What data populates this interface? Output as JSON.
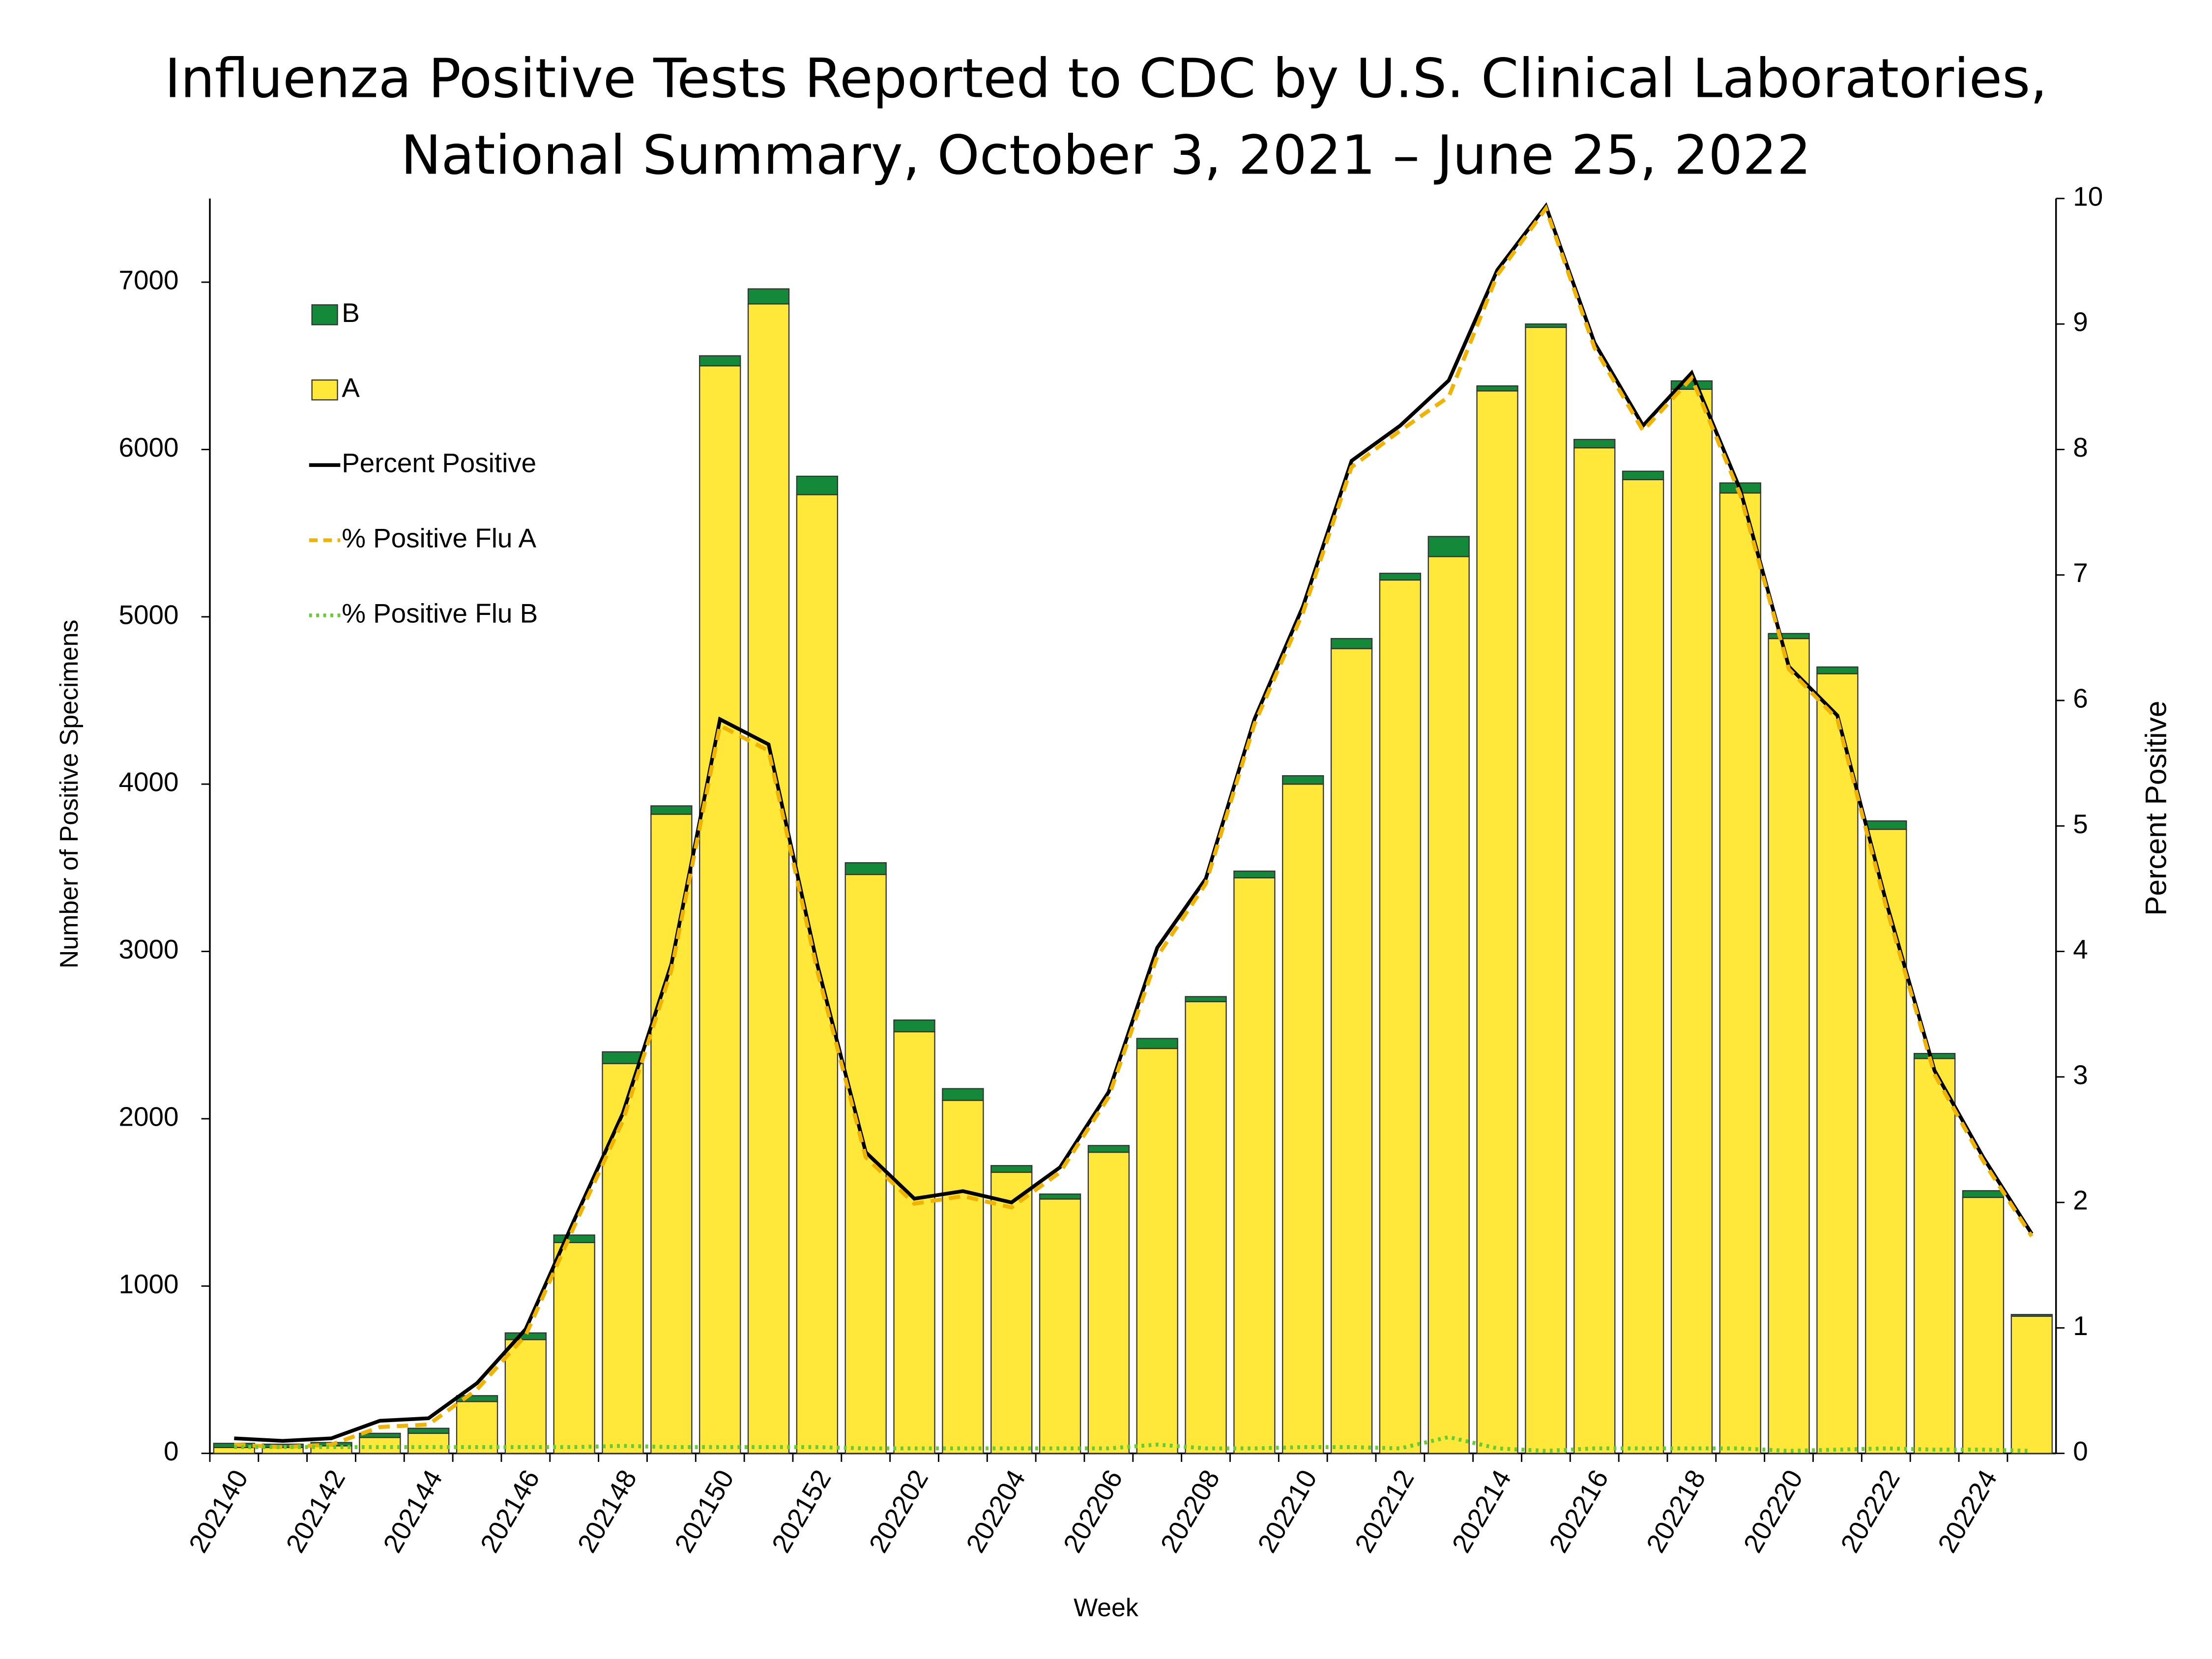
{
  "chart_data": {
    "type": "bar-line",
    "title": [
      "Influenza Positive Tests Reported to CDC by U.S. Clinical Laboratories,",
      "National Summary, October 3, 2021 – June 25, 2022"
    ],
    "x_label": "Week",
    "y_label": "Number of Positive Specimens",
    "y2_label": "Percent Positive",
    "categories": [
      "202140",
      null,
      "202142",
      null,
      "202144",
      null,
      "202146",
      null,
      "202148",
      null,
      "202150",
      null,
      "202152",
      null,
      "202202",
      null,
      "202204",
      null,
      "202206",
      null,
      "202208",
      null,
      "202210",
      null,
      "202212",
      null,
      "202214",
      null,
      "202216",
      null,
      "202218",
      null,
      "202220",
      null,
      "202222",
      null,
      "202224",
      null
    ],
    "ylim": [
      0,
      7500
    ],
    "yticks": [
      0,
      1000,
      2000,
      3000,
      4000,
      5000,
      6000,
      7000
    ],
    "y2lim": [
      0,
      10
    ],
    "y2ticks": [
      0,
      1,
      2,
      3,
      4,
      5,
      6,
      7,
      8,
      9,
      10
    ],
    "legend": "upper left",
    "series": [
      {
        "name": "B",
        "kind": "bar",
        "color": "#15893a",
        "values": [
          25,
          20,
          20,
          25,
          30,
          35,
          40,
          45,
          70,
          50,
          60,
          90,
          110,
          70,
          70,
          70,
          40,
          30,
          40,
          60,
          30,
          40,
          50,
          60,
          40,
          120,
          30,
          20,
          50,
          50,
          50,
          60,
          30,
          40,
          50,
          30,
          40,
          10
        ]
      },
      {
        "name": "A",
        "kind": "bar",
        "color": "#ffe83a",
        "values": [
          35,
          35,
          45,
          95,
          120,
          310,
          680,
          1260,
          2330,
          3820,
          6500,
          6870,
          5730,
          3460,
          2520,
          2110,
          1680,
          1520,
          1800,
          2420,
          2700,
          3440,
          4000,
          4810,
          5220,
          5360,
          6350,
          6730,
          6010,
          5820,
          6360,
          5740,
          4870,
          4660,
          3730,
          2360,
          1530,
          820
        ]
      },
      {
        "name": "Percent Positive",
        "kind": "line",
        "axis": "y2",
        "color": "#000000",
        "dash": "solid",
        "values": [
          0.12,
          0.1,
          0.12,
          0.26,
          0.28,
          0.56,
          0.99,
          1.86,
          2.71,
          3.9,
          5.85,
          5.65,
          3.9,
          2.4,
          2.03,
          2.09,
          2.0,
          2.28,
          2.88,
          4.03,
          4.58,
          5.85,
          6.75,
          7.91,
          8.19,
          8.55,
          9.43,
          9.94,
          8.85,
          8.19,
          8.61,
          7.68,
          6.27,
          5.88,
          4.4,
          3.05,
          2.36,
          1.75
        ]
      },
      {
        "name": "% Positive Flu A",
        "kind": "line",
        "axis": "y2",
        "color": "#f0b400",
        "dash": "dashed",
        "values": [
          0.07,
          0.05,
          0.07,
          0.21,
          0.23,
          0.51,
          0.94,
          1.81,
          2.65,
          3.85,
          5.8,
          5.6,
          3.85,
          2.36,
          1.99,
          2.05,
          1.96,
          2.24,
          2.84,
          3.96,
          4.54,
          5.81,
          6.7,
          7.86,
          8.15,
          8.42,
          9.39,
          9.92,
          8.81,
          8.15,
          8.57,
          7.64,
          6.25,
          5.85,
          4.36,
          3.02,
          2.33,
          1.73
        ]
      },
      {
        "name": "% Positive Flu B",
        "kind": "line",
        "axis": "y2",
        "color": "#66cc33",
        "dash": "dotted",
        "values": [
          0.05,
          0.05,
          0.05,
          0.05,
          0.05,
          0.05,
          0.05,
          0.05,
          0.06,
          0.05,
          0.05,
          0.05,
          0.05,
          0.04,
          0.04,
          0.04,
          0.04,
          0.04,
          0.04,
          0.07,
          0.04,
          0.04,
          0.05,
          0.05,
          0.04,
          0.13,
          0.04,
          0.02,
          0.04,
          0.04,
          0.04,
          0.04,
          0.02,
          0.03,
          0.04,
          0.03,
          0.03,
          0.02
        ]
      }
    ]
  }
}
